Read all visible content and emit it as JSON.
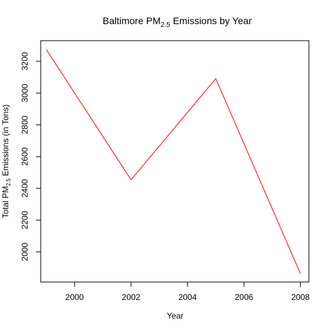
{
  "chart_data": {
    "type": "line",
    "title": {
      "main": "Baltimore PM",
      "sub": "2.5",
      "rest": " Emissions by Year"
    },
    "xlabel": "Year",
    "ylabel": {
      "main": "Total PM",
      "sub": "2.5",
      "rest": " Emissions (in Tons)"
    },
    "x": [
      1999,
      2002,
      2005,
      2008
    ],
    "series": [
      {
        "values": [
          3274,
          2454,
          3091,
          1862
        ],
        "color": "#ff0000"
      }
    ],
    "xlim": [
      1998.8,
      2008.3
    ],
    "ylim": [
      1810,
      3330
    ],
    "xticks": [
      2000,
      2002,
      2004,
      2006,
      2008
    ],
    "yticks": [
      2000,
      2200,
      2400,
      2600,
      2800,
      3000,
      3200
    ],
    "grid": false
  }
}
